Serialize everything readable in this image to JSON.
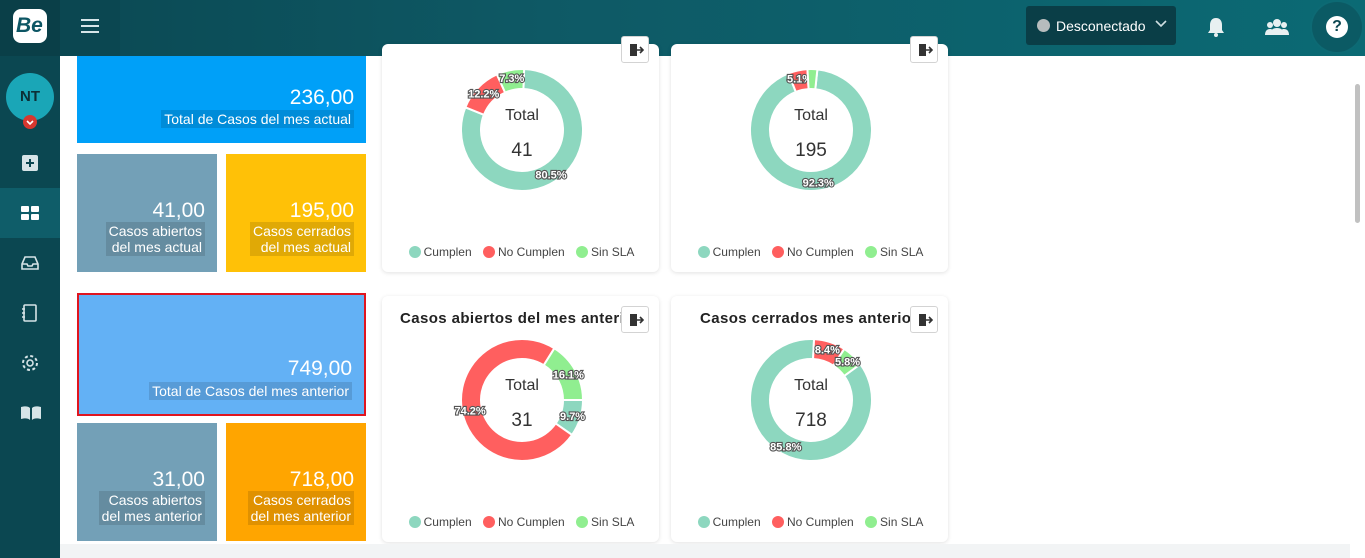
{
  "app": {
    "logo_text": "Be"
  },
  "topbar": {
    "status_label": "Desconectado",
    "status_color": "#b7bcbd"
  },
  "sidebar": {
    "user_initials": "NT"
  },
  "cards": {
    "total_actual": {
      "value": "236,00",
      "label": "Total de Casos del mes actual",
      "color": "#00a0f8"
    },
    "abiertos_actual": {
      "value": "41,00",
      "label1": "Casos abiertos",
      "label2": "del mes actual",
      "color": "#73a0b7"
    },
    "cerrados_actual": {
      "value": "195,00",
      "label1": "Casos cerrados",
      "label2": "del mes actual",
      "color": "#ffc107"
    },
    "total_anterior": {
      "value": "749,00",
      "label": "Total de Casos del mes anterior",
      "color": "#63b1f5"
    },
    "abiertos_anterior": {
      "value": "31,00",
      "label1": "Casos abiertos",
      "label2": "del mes anterior",
      "color": "#73a0b7"
    },
    "cerrados_anterior": {
      "value": "718,00",
      "label1": "Casos cerrados",
      "label2": "del mes anterior",
      "color": "#ffa500"
    }
  },
  "legend": {
    "cumplen": "Cumplen",
    "no_cumplen": "No Cumplen",
    "sin_sla": "Sin SLA"
  },
  "colors": {
    "cumplen": "#8dd7bf",
    "no_cumplen": "#ff5f5f",
    "sin_sla": "#90ee90"
  },
  "chart_data": [
    {
      "type": "pie",
      "title": "",
      "total_label": "Total",
      "total": "41",
      "categories": [
        "Cumplen",
        "No Cumplen",
        "Sin SLA"
      ],
      "values": [
        80.5,
        12.2,
        7.3
      ],
      "value_labels": [
        "80.5%",
        "12.2%",
        "7.3%"
      ]
    },
    {
      "type": "pie",
      "title": "",
      "total_label": "Total",
      "total": "195",
      "categories": [
        "Cumplen",
        "No Cumplen",
        "Sin SLA"
      ],
      "values": [
        92.3,
        5.1,
        2.6
      ],
      "value_labels": [
        "92.3%",
        "5.1%",
        ""
      ]
    },
    {
      "type": "pie",
      "title": "Casos abiertos del mes anterior",
      "total_label": "Total",
      "total": "31",
      "categories": [
        "Cumplen",
        "No Cumplen",
        "Sin SLA"
      ],
      "values": [
        9.7,
        74.2,
        16.1
      ],
      "value_labels": [
        "9.7%",
        "74.2%",
        "16.1%"
      ]
    },
    {
      "type": "pie",
      "title": "Casos cerrados mes anterior",
      "total_label": "Total",
      "total": "718",
      "categories": [
        "Cumplen",
        "No Cumplen",
        "Sin SLA"
      ],
      "values": [
        85.8,
        8.4,
        5.8
      ],
      "value_labels": [
        "85.8%",
        "8.4%",
        "5.8%"
      ]
    }
  ]
}
